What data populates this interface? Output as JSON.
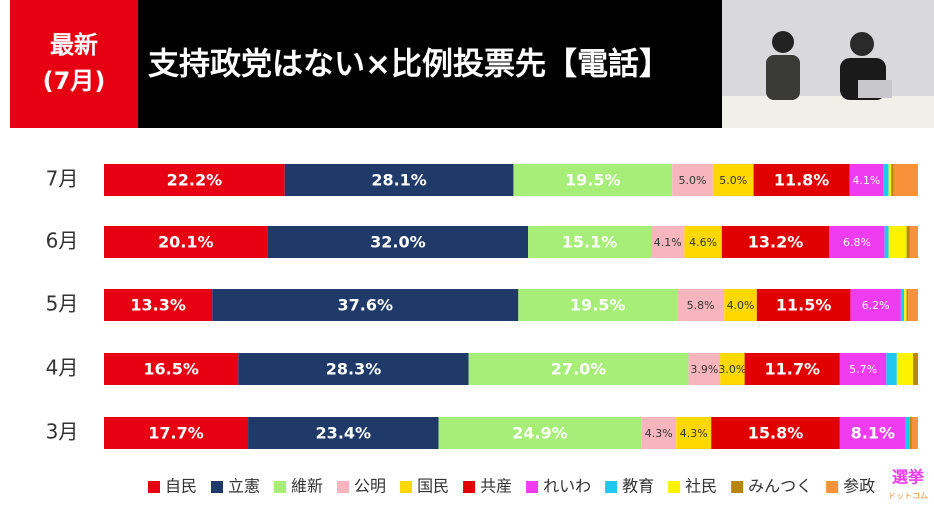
{
  "badge": [
    "最新",
    "(7月)"
  ],
  "logo": [
    "選挙",
    "ドットコム"
  ],
  "chart_data": {
    "type": "stacked-bar-horizontal",
    "title": "支持政党はない×比例投票先【電話】",
    "categories": [
      "7月",
      "6月",
      "5月",
      "4月",
      "3月"
    ],
    "xlim": [
      0,
      100
    ],
    "series": [
      {
        "name": "自民",
        "color": "#e60012",
        "label_color": "#ffffff",
        "values": [
          22.2,
          20.1,
          13.3,
          16.5,
          17.7
        ],
        "value_labels": [
          "22.2%",
          "20.1%",
          "13.3%",
          "16.5%",
          "17.7%"
        ]
      },
      {
        "name": "立憲",
        "color": "#1f3a68",
        "label_color": "#ffffff",
        "values": [
          28.1,
          32.0,
          37.6,
          28.3,
          23.4
        ],
        "value_labels": [
          "28.1%",
          "32.0%",
          "37.6%",
          "28.3%",
          "23.4%"
        ]
      },
      {
        "name": "維新",
        "color": "#a6ee78",
        "label_color": "#ffffff",
        "values": [
          19.5,
          15.1,
          19.5,
          27.0,
          24.9
        ],
        "value_labels": [
          "19.5%",
          "15.1%",
          "19.5%",
          "27.0%",
          "24.9%"
        ]
      },
      {
        "name": "公明",
        "color": "#f7b6bd",
        "label_color": "#333333",
        "values": [
          5.0,
          4.1,
          5.8,
          3.9,
          4.3
        ],
        "value_labels": [
          "5.0%",
          "4.1%",
          "5.8%",
          "3.9%",
          "4.3%"
        ]
      },
      {
        "name": "国民",
        "color": "#ffd800",
        "label_color": "#333333",
        "values": [
          5.0,
          4.6,
          4.0,
          3.0,
          4.3
        ],
        "value_labels": [
          "5.0%",
          "4.6%",
          "4.0%",
          "3.0%",
          "4.3%"
        ]
      },
      {
        "name": "共産",
        "color": "#e00000",
        "label_color": "#ffffff",
        "values": [
          11.8,
          13.2,
          11.5,
          11.7,
          15.8
        ],
        "value_labels": [
          "11.8%",
          "13.2%",
          "11.5%",
          "11.7%",
          "15.8%"
        ]
      },
      {
        "name": "れいわ",
        "color": "#f03cf0",
        "label_color": "#ffffff",
        "values": [
          4.1,
          6.8,
          6.2,
          5.7,
          8.1
        ],
        "value_labels": [
          "4.1%",
          "6.8%",
          "6.2%",
          "5.7%",
          "8.1%"
        ]
      },
      {
        "name": "教育",
        "color": "#1ec8ef",
        "values": [
          0.7,
          0.5,
          0.4,
          1.3,
          0.5
        ]
      },
      {
        "name": "社民",
        "color": "#fff200",
        "values": [
          0.3,
          2.2,
          0.3,
          2.0,
          0
        ]
      },
      {
        "name": "みんつく",
        "color": "#b8860b",
        "values": [
          0.3,
          0.4,
          0.2,
          0.6,
          0.2
        ]
      },
      {
        "name": "参政",
        "color": "#f7923a",
        "values": [
          3.0,
          1.0,
          1.2,
          0,
          0.8
        ]
      }
    ]
  }
}
